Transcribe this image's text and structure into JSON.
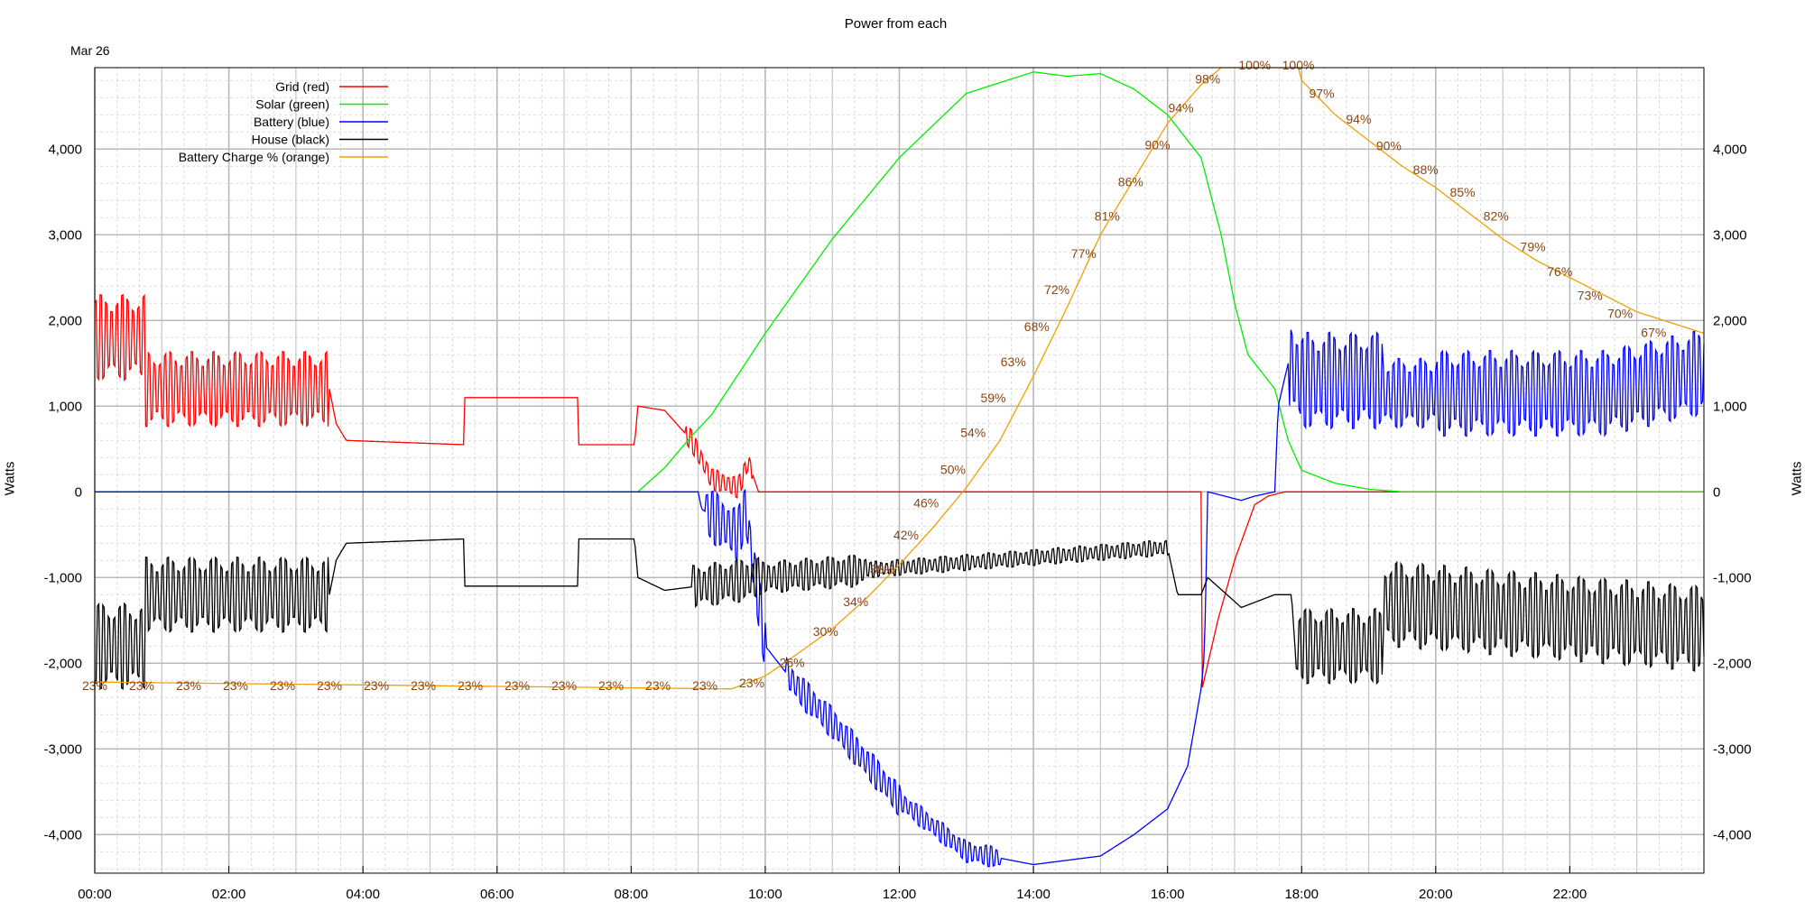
{
  "title": "Power from each",
  "date_label": "Mar 26",
  "chart_data": {
    "type": "line",
    "title": "Power from each",
    "xlabel": "",
    "ylabel": "Watts",
    "y2label": "Watts",
    "xlim": [
      0,
      24
    ],
    "ylim": [
      -4450,
      4950
    ],
    "x_ticks": [
      "00:00",
      "02:00",
      "04:00",
      "06:00",
      "08:00",
      "10:00",
      "12:00",
      "14:00",
      "16:00",
      "18:00",
      "20:00",
      "22:00"
    ],
    "y_ticks": [
      4000,
      3000,
      2000,
      1000,
      0,
      -1000,
      -2000,
      -3000,
      -4000
    ],
    "y_tick_labels": [
      "4,000",
      "3,000",
      "2,000",
      "1,000",
      "0",
      "-1,000",
      "-2,000",
      "-3,000",
      "-4,000"
    ],
    "grid": true,
    "legend_position": "top-left",
    "series": [
      {
        "name": "Grid (red)",
        "color": "#ff0000",
        "style": "oscillating",
        "points": [
          [
            0,
            1800
          ],
          [
            0.75,
            1800
          ],
          [
            0.75,
            1200
          ],
          [
            3.5,
            1200
          ],
          [
            3.6,
            800
          ],
          [
            3.75,
            600
          ],
          [
            5.5,
            550
          ],
          [
            5.5,
            1100
          ],
          [
            7.2,
            1100
          ],
          [
            7.2,
            550
          ],
          [
            8.05,
            550
          ],
          [
            8.1,
            1000
          ],
          [
            8.5,
            950
          ],
          [
            8.9,
            600
          ],
          [
            9.2,
            150
          ],
          [
            9.6,
            50
          ],
          [
            9.75,
            350
          ],
          [
            9.9,
            0
          ],
          [
            16.5,
            0
          ],
          [
            16.5,
            -2350
          ],
          [
            16.75,
            -1500
          ],
          [
            17.0,
            -800
          ],
          [
            17.3,
            -150
          ],
          [
            17.5,
            -50
          ],
          [
            17.75,
            0
          ],
          [
            24,
            0
          ]
        ],
        "amp": [
          [
            0,
            0.75,
            800
          ],
          [
            0.75,
            3.5,
            700
          ],
          [
            8.8,
            9.8,
            200
          ]
        ]
      },
      {
        "name": "Solar (green)",
        "color": "#00ee00",
        "style": "smooth",
        "points": [
          [
            0,
            0
          ],
          [
            8.1,
            0
          ],
          [
            8.5,
            280
          ],
          [
            8.9,
            650
          ],
          [
            9.2,
            900
          ],
          [
            10,
            1850
          ],
          [
            11,
            2950
          ],
          [
            12,
            3900
          ],
          [
            13,
            4650
          ],
          [
            14,
            4900
          ],
          [
            14.5,
            4850
          ],
          [
            15,
            4880
          ],
          [
            15.5,
            4700
          ],
          [
            16,
            4400
          ],
          [
            16.5,
            3900
          ],
          [
            16.8,
            3000
          ],
          [
            17.0,
            2200
          ],
          [
            17.2,
            1600
          ],
          [
            17.6,
            1200
          ],
          [
            17.8,
            600
          ],
          [
            18.0,
            250
          ],
          [
            18.5,
            100
          ],
          [
            19.0,
            30
          ],
          [
            19.5,
            0
          ],
          [
            24,
            0
          ]
        ],
        "amp": []
      },
      {
        "name": "Battery (blue)",
        "color": "#0000ff",
        "style": "oscillating",
        "points": [
          [
            0,
            0
          ],
          [
            9.0,
            0
          ],
          [
            9.05,
            -200
          ],
          [
            9.6,
            -500
          ],
          [
            9.7,
            -200
          ],
          [
            10.0,
            -1800
          ],
          [
            10.5,
            -2300
          ],
          [
            11,
            -2700
          ],
          [
            12,
            -3600
          ],
          [
            12.5,
            -3900
          ],
          [
            13,
            -4200
          ],
          [
            14,
            -4350
          ],
          [
            14.5,
            -4300
          ],
          [
            15,
            -4250
          ],
          [
            15.5,
            -4000
          ],
          [
            16,
            -3700
          ],
          [
            16.3,
            -3200
          ],
          [
            16.5,
            -2300
          ],
          [
            16.55,
            -1900
          ],
          [
            16.6,
            0
          ],
          [
            17.1,
            -100
          ],
          [
            17.3,
            -50
          ],
          [
            17.6,
            0
          ],
          [
            17.65,
            1000
          ],
          [
            17.8,
            1500
          ],
          [
            18,
            1300
          ],
          [
            19.2,
            1300
          ],
          [
            19.2,
            1150
          ],
          [
            22.5,
            1150
          ],
          [
            24,
            1400
          ]
        ],
        "amp": [
          [
            9.1,
            10.0,
            500
          ],
          [
            10.3,
            12.0,
            300
          ],
          [
            12.0,
            13.5,
            200
          ],
          [
            17.8,
            19.2,
            900
          ],
          [
            19.2,
            20.0,
            650
          ],
          [
            20.0,
            24,
            800
          ]
        ]
      },
      {
        "name": "House (black)",
        "color": "#000000",
        "style": "oscillating",
        "points": [
          [
            0,
            -1800
          ],
          [
            0.75,
            -1800
          ],
          [
            0.75,
            -1200
          ],
          [
            3.5,
            -1200
          ],
          [
            3.6,
            -800
          ],
          [
            3.75,
            -600
          ],
          [
            5.5,
            -550
          ],
          [
            5.5,
            -1100
          ],
          [
            7.2,
            -1100
          ],
          [
            7.2,
            -550
          ],
          [
            8.05,
            -550
          ],
          [
            8.1,
            -1000
          ],
          [
            8.5,
            -1150
          ],
          [
            9.0,
            -1100
          ],
          [
            10.0,
            -1000
          ],
          [
            16.0,
            -650
          ],
          [
            16.15,
            -1200
          ],
          [
            16.5,
            -1200
          ],
          [
            16.6,
            -1000
          ],
          [
            17.1,
            -1350
          ],
          [
            17.6,
            -1200
          ],
          [
            17.85,
            -1200
          ],
          [
            17.9,
            -1800
          ],
          [
            19.2,
            -1800
          ],
          [
            19.2,
            -1300
          ],
          [
            24,
            -1600
          ]
        ],
        "amp": [
          [
            0,
            0.75,
            800
          ],
          [
            0.75,
            3.5,
            700
          ],
          [
            8.9,
            9.9,
            400
          ],
          [
            9.9,
            11.5,
            300
          ],
          [
            11.5,
            16.0,
            150
          ],
          [
            17.9,
            19.2,
            700
          ],
          [
            19.2,
            24,
            800
          ]
        ]
      },
      {
        "name": "Battery Charge % (orange)",
        "color": "#f0a000",
        "style": "smooth",
        "axis": "charge",
        "points": [
          [
            0,
            -2220
          ],
          [
            9.5,
            -2300
          ],
          [
            10.0,
            -2150
          ],
          [
            10.5,
            -1880
          ],
          [
            11.0,
            -1600
          ],
          [
            11.5,
            -1250
          ],
          [
            12.0,
            -850
          ],
          [
            12.5,
            -420
          ],
          [
            13.0,
            50
          ],
          [
            13.5,
            600
          ],
          [
            14.0,
            1350
          ],
          [
            14.5,
            2150
          ],
          [
            15.0,
            3000
          ],
          [
            15.5,
            3650
          ],
          [
            16.0,
            4300
          ],
          [
            16.5,
            4750
          ],
          [
            16.8,
            4950
          ],
          [
            17.95,
            4950
          ],
          [
            18.0,
            4800
          ],
          [
            18.5,
            4400
          ],
          [
            19.0,
            4100
          ],
          [
            19.5,
            3800
          ],
          [
            20.0,
            3550
          ],
          [
            20.5,
            3250
          ],
          [
            21.0,
            2950
          ],
          [
            21.5,
            2700
          ],
          [
            22.0,
            2500
          ],
          [
            22.5,
            2300
          ],
          [
            23.0,
            2100
          ],
          [
            24,
            1850
          ]
        ],
        "amp": []
      }
    ],
    "charge_labels": [
      {
        "x": 0.0,
        "y": -2260,
        "text": "23%"
      },
      {
        "x": 0.7,
        "y": -2260,
        "text": "23%"
      },
      {
        "x": 1.4,
        "y": -2260,
        "text": "23%"
      },
      {
        "x": 2.1,
        "y": -2260,
        "text": "23%"
      },
      {
        "x": 2.8,
        "y": -2260,
        "text": "23%"
      },
      {
        "x": 3.5,
        "y": -2260,
        "text": "23%"
      },
      {
        "x": 4.2,
        "y": -2260,
        "text": "23%"
      },
      {
        "x": 4.9,
        "y": -2260,
        "text": "23%"
      },
      {
        "x": 5.6,
        "y": -2260,
        "text": "23%"
      },
      {
        "x": 6.3,
        "y": -2260,
        "text": "23%"
      },
      {
        "x": 7.0,
        "y": -2260,
        "text": "23%"
      },
      {
        "x": 7.7,
        "y": -2260,
        "text": "23%"
      },
      {
        "x": 8.4,
        "y": -2260,
        "text": "23%"
      },
      {
        "x": 9.1,
        "y": -2260,
        "text": "23%"
      },
      {
        "x": 9.8,
        "y": -2230,
        "text": "23%"
      },
      {
        "x": 10.4,
        "y": -1990,
        "text": "26%"
      },
      {
        "x": 10.9,
        "y": -1630,
        "text": "30%"
      },
      {
        "x": 11.35,
        "y": -1280,
        "text": "34%"
      },
      {
        "x": 11.75,
        "y": -900,
        "text": "38%"
      },
      {
        "x": 12.1,
        "y": -500,
        "text": "42%"
      },
      {
        "x": 12.4,
        "y": -130,
        "text": "46%"
      },
      {
        "x": 12.8,
        "y": 260,
        "text": "50%"
      },
      {
        "x": 13.1,
        "y": 690,
        "text": "54%"
      },
      {
        "x": 13.4,
        "y": 1100,
        "text": "59%"
      },
      {
        "x": 13.7,
        "y": 1520,
        "text": "63%"
      },
      {
        "x": 14.05,
        "y": 1930,
        "text": "68%"
      },
      {
        "x": 14.35,
        "y": 2360,
        "text": "72%"
      },
      {
        "x": 14.75,
        "y": 2780,
        "text": "77%"
      },
      {
        "x": 15.1,
        "y": 3220,
        "text": "81%"
      },
      {
        "x": 15.45,
        "y": 3620,
        "text": "86%"
      },
      {
        "x": 15.85,
        "y": 4050,
        "text": "90%"
      },
      {
        "x": 16.2,
        "y": 4480,
        "text": "94%"
      },
      {
        "x": 16.6,
        "y": 4820,
        "text": "98%"
      },
      {
        "x": 17.3,
        "y": 4980,
        "text": "100%"
      },
      {
        "x": 17.95,
        "y": 4980,
        "text": "100%"
      },
      {
        "x": 18.3,
        "y": 4650,
        "text": "97%"
      },
      {
        "x": 18.85,
        "y": 4350,
        "text": "94%"
      },
      {
        "x": 19.3,
        "y": 4040,
        "text": "90%"
      },
      {
        "x": 19.85,
        "y": 3760,
        "text": "88%"
      },
      {
        "x": 20.4,
        "y": 3500,
        "text": "85%"
      },
      {
        "x": 20.9,
        "y": 3220,
        "text": "82%"
      },
      {
        "x": 21.45,
        "y": 2860,
        "text": "79%"
      },
      {
        "x": 21.85,
        "y": 2570,
        "text": "76%"
      },
      {
        "x": 22.3,
        "y": 2290,
        "text": "73%"
      },
      {
        "x": 22.75,
        "y": 2080,
        "text": "70%"
      },
      {
        "x": 23.25,
        "y": 1860,
        "text": "67%"
      }
    ]
  }
}
